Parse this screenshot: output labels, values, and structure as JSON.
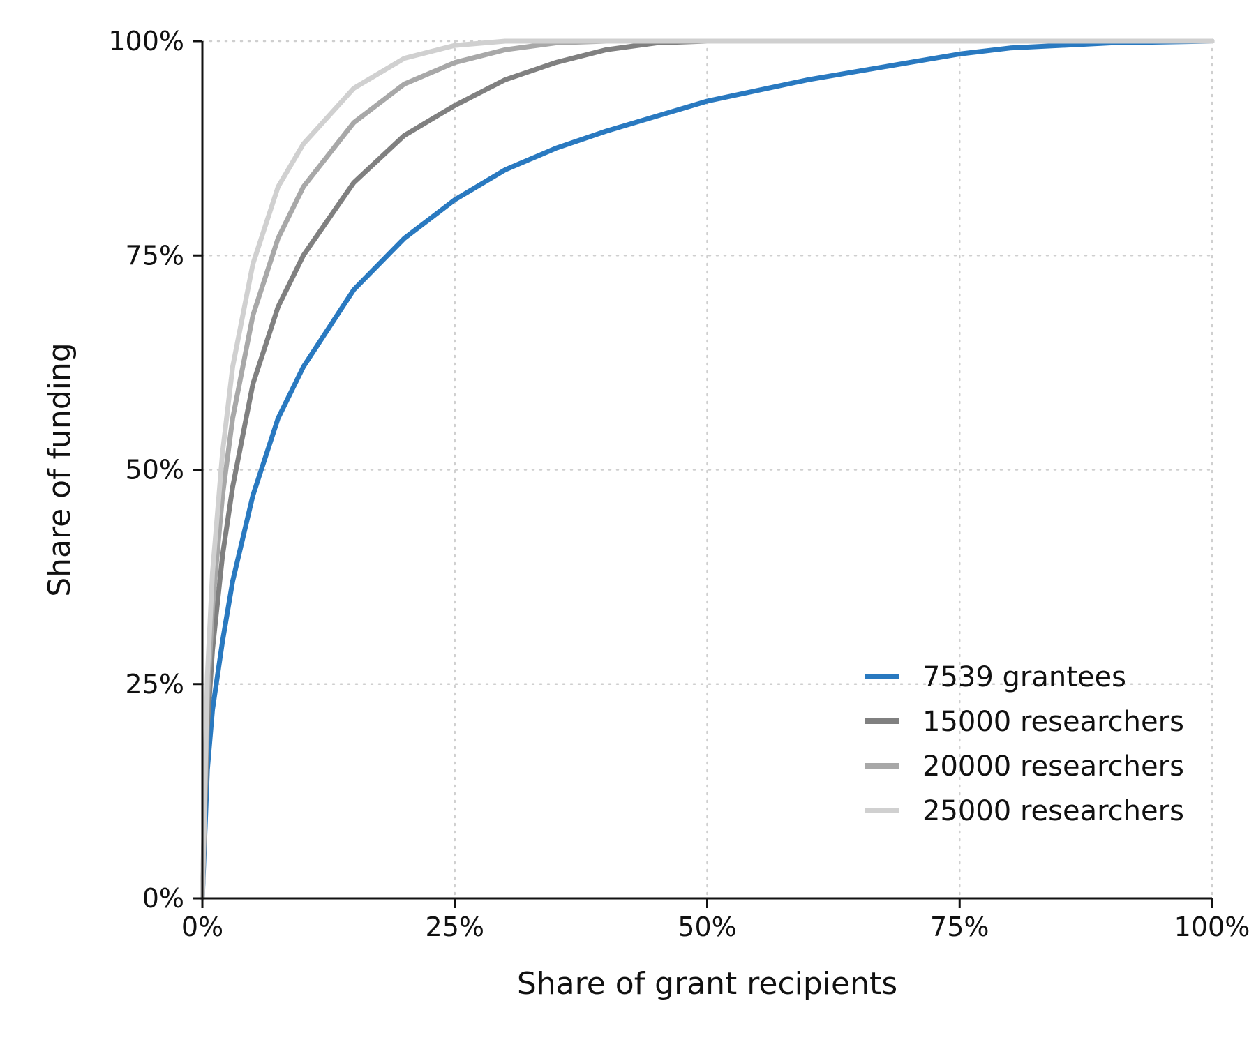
{
  "chart_data": {
    "type": "line",
    "title": "",
    "xlabel": "Share of grant recipients",
    "ylabel": "Share of funding",
    "xlim": [
      0,
      1
    ],
    "ylim": [
      0,
      1
    ],
    "x_ticks": [
      0,
      0.25,
      0.5,
      0.75,
      1
    ],
    "x_tick_labels": [
      "0%",
      "25%",
      "50%",
      "75%",
      "100%"
    ],
    "y_ticks": [
      0,
      0.25,
      0.5,
      0.75,
      1
    ],
    "y_tick_labels": [
      "0%",
      "25%",
      "50%",
      "75%",
      "100%"
    ],
    "grid": "dotted",
    "legend_position": "bottom-right",
    "series": [
      {
        "name": "7539 grantees",
        "color": "#2979c0",
        "points": [
          [
            0,
            0
          ],
          [
            0.005,
            0.15
          ],
          [
            0.01,
            0.22
          ],
          [
            0.02,
            0.3
          ],
          [
            0.03,
            0.37
          ],
          [
            0.05,
            0.47
          ],
          [
            0.075,
            0.56
          ],
          [
            0.1,
            0.62
          ],
          [
            0.15,
            0.71
          ],
          [
            0.2,
            0.77
          ],
          [
            0.25,
            0.815
          ],
          [
            0.3,
            0.85
          ],
          [
            0.35,
            0.875
          ],
          [
            0.4,
            0.895
          ],
          [
            0.5,
            0.93
          ],
          [
            0.6,
            0.955
          ],
          [
            0.7,
            0.975
          ],
          [
            0.75,
            0.985
          ],
          [
            0.8,
            0.992
          ],
          [
            0.9,
            0.998
          ],
          [
            1,
            1
          ]
        ]
      },
      {
        "name": "15000 researchers",
        "color": "#808080",
        "points": [
          [
            0,
            0
          ],
          [
            0.005,
            0.2
          ],
          [
            0.01,
            0.29
          ],
          [
            0.02,
            0.4
          ],
          [
            0.03,
            0.48
          ],
          [
            0.05,
            0.6
          ],
          [
            0.075,
            0.69
          ],
          [
            0.1,
            0.75
          ],
          [
            0.15,
            0.835
          ],
          [
            0.2,
            0.89
          ],
          [
            0.25,
            0.925
          ],
          [
            0.3,
            0.955
          ],
          [
            0.35,
            0.975
          ],
          [
            0.4,
            0.99
          ],
          [
            0.45,
            0.998
          ],
          [
            0.5,
            1
          ],
          [
            1,
            1
          ]
        ]
      },
      {
        "name": "20000 researchers",
        "color": "#a8a8a8",
        "points": [
          [
            0,
            0
          ],
          [
            0.005,
            0.23
          ],
          [
            0.01,
            0.34
          ],
          [
            0.02,
            0.47
          ],
          [
            0.03,
            0.56
          ],
          [
            0.05,
            0.68
          ],
          [
            0.075,
            0.77
          ],
          [
            0.1,
            0.83
          ],
          [
            0.15,
            0.905
          ],
          [
            0.2,
            0.95
          ],
          [
            0.25,
            0.975
          ],
          [
            0.3,
            0.99
          ],
          [
            0.35,
            0.998
          ],
          [
            0.4,
            1
          ],
          [
            1,
            1
          ]
        ]
      },
      {
        "name": "25000 researchers",
        "color": "#d0d0d0",
        "points": [
          [
            0,
            0
          ],
          [
            0.005,
            0.26
          ],
          [
            0.01,
            0.38
          ],
          [
            0.02,
            0.52
          ],
          [
            0.03,
            0.62
          ],
          [
            0.05,
            0.74
          ],
          [
            0.075,
            0.83
          ],
          [
            0.1,
            0.88
          ],
          [
            0.15,
            0.945
          ],
          [
            0.2,
            0.98
          ],
          [
            0.25,
            0.995
          ],
          [
            0.3,
            1
          ],
          [
            1,
            1
          ]
        ]
      }
    ]
  }
}
